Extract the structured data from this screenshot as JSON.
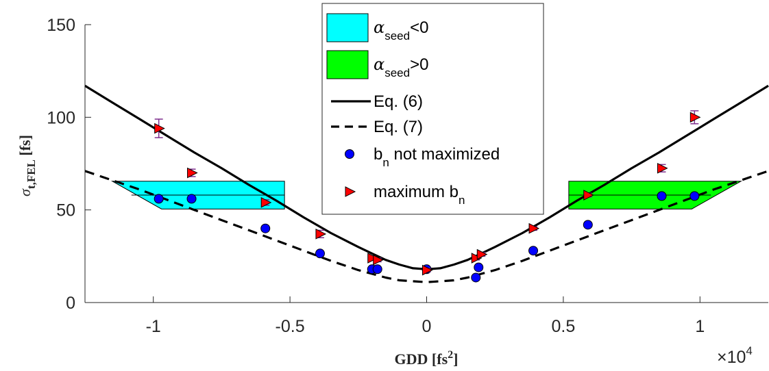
{
  "chart_data": {
    "type": "line",
    "xlabel": {
      "main": "GDD [fs",
      "sup": "2",
      "tail": "]"
    },
    "ylabel": {
      "sym": "σ",
      "sub": "t,FEL",
      "unit": " [fs]"
    },
    "x_exponent": {
      "prefix": "×10",
      "exp": "4"
    },
    "xlim": [
      -1.25,
      1.25
    ],
    "ylim": [
      0,
      150
    ],
    "x_ticks": [
      -1,
      -0.5,
      0,
      0.5,
      1
    ],
    "x_tick_labels": [
      "-1",
      "-0.5",
      "0",
      "0.5",
      "1"
    ],
    "y_ticks": [
      0,
      50,
      100,
      150
    ],
    "y_tick_labels": [
      "0",
      "50",
      "100",
      "150"
    ],
    "grid": false,
    "legend_position": "top-center",
    "colors": {
      "cyan": "#00ffff",
      "green": "#00ff00",
      "marker_blue": "#0000ff",
      "marker_red": "#ff0000",
      "errorbar": "#7e2f8e",
      "line": "#000000"
    },
    "regions": [
      {
        "name": "α_seed<0",
        "color": "#00ffff",
        "polygon": [
          [
            -1.15,
            65.5
          ],
          [
            -0.52,
            65.5
          ],
          [
            -0.52,
            50.5
          ],
          [
            -0.97,
            50.5
          ]
        ]
      },
      {
        "name": "α_seed>0",
        "color": "#00ff00",
        "polygon": [
          [
            0.52,
            65.5
          ],
          [
            1.15,
            65.5
          ],
          [
            0.97,
            50.5
          ],
          [
            0.52,
            50.5
          ]
        ]
      }
    ],
    "region_inner_lines": [
      {
        "x": [
          -1.08,
          -0.52
        ],
        "y": 58
      },
      {
        "x": [
          0.52,
          1.04
        ],
        "y": 58
      }
    ],
    "series": [
      {
        "name": "Eq. (6)",
        "style": "solid",
        "x": [
          -1.25,
          -1.15,
          -1.05,
          -0.95,
          -0.85,
          -0.75,
          -0.65,
          -0.55,
          -0.45,
          -0.35,
          -0.25,
          -0.2,
          -0.15,
          -0.1,
          -0.05,
          0,
          0.05,
          0.1,
          0.15,
          0.2,
          0.25,
          0.35,
          0.45,
          0.55,
          0.65,
          0.75,
          0.85,
          0.95,
          1.05,
          1.15,
          1.25
        ],
        "y": [
          117,
          108,
          99,
          90,
          81,
          72.5,
          63.5,
          55,
          46,
          37.5,
          30,
          26.5,
          23,
          20.5,
          18.5,
          18,
          18.5,
          20.5,
          23,
          26.5,
          30,
          37.5,
          46,
          55,
          63.5,
          72.5,
          81,
          90,
          99,
          108,
          117
        ]
      },
      {
        "name": "Eq. (7)",
        "style": "dashed",
        "x": [
          -1.25,
          -1.15,
          -1.05,
          -0.95,
          -0.85,
          -0.75,
          -0.65,
          -0.55,
          -0.45,
          -0.35,
          -0.25,
          -0.2,
          -0.15,
          -0.1,
          -0.05,
          0,
          0.05,
          0.1,
          0.15,
          0.2,
          0.25,
          0.35,
          0.45,
          0.55,
          0.65,
          0.75,
          0.85,
          0.95,
          1.05,
          1.15,
          1.25
        ],
        "y": [
          71,
          66,
          61,
          55.5,
          50,
          44.5,
          39,
          33.5,
          28,
          22.5,
          17.5,
          15.5,
          13.5,
          12,
          11.5,
          11,
          11.5,
          12,
          13.5,
          15.5,
          17.5,
          22.5,
          28,
          33.5,
          39,
          44.5,
          50,
          55.5,
          61,
          66,
          71
        ]
      },
      {
        "name": "b_n not maximized",
        "marker": "circle",
        "x": [
          -0.98,
          -0.86,
          -0.59,
          -0.39,
          -0.2,
          -0.18,
          0.0,
          0.18,
          0.19,
          0.39,
          0.59,
          0.86,
          0.98
        ],
        "y": [
          56,
          56,
          40,
          26.5,
          18,
          18,
          18,
          13.5,
          19,
          28,
          42,
          57.5,
          57.5
        ]
      },
      {
        "name": "maximum b_n",
        "marker": "triangle-right",
        "x": [
          -0.98,
          -0.86,
          -0.59,
          -0.39,
          -0.2,
          -0.18,
          0.0,
          0.18,
          0.2,
          0.39,
          0.59,
          0.86,
          0.98
        ],
        "y": [
          94,
          70,
          54,
          37,
          24,
          23,
          17.5,
          24,
          26,
          40,
          58,
          72.5,
          100
        ],
        "err": [
          5,
          2,
          1.5,
          2,
          1,
          1,
          1,
          1,
          1,
          1,
          1,
          2,
          3.5
        ]
      }
    ],
    "legend": [
      {
        "kind": "patch",
        "color": "#00ffff",
        "label_sym": "α",
        "label_sub": "seed",
        "label_tail": "<0"
      },
      {
        "kind": "patch",
        "color": "#00ff00",
        "label_sym": "α",
        "label_sub": "seed",
        "label_tail": ">0"
      },
      {
        "kind": "line",
        "dash": false,
        "label": "Eq. (6)"
      },
      {
        "kind": "line",
        "dash": true,
        "label": "Eq. (7)"
      },
      {
        "kind": "circle",
        "label_main": "b",
        "label_sub": "n",
        "label_tail": " not maximized"
      },
      {
        "kind": "triangle",
        "label_main": "maximum b",
        "label_sub": "n",
        "label_tail": ""
      }
    ]
  }
}
